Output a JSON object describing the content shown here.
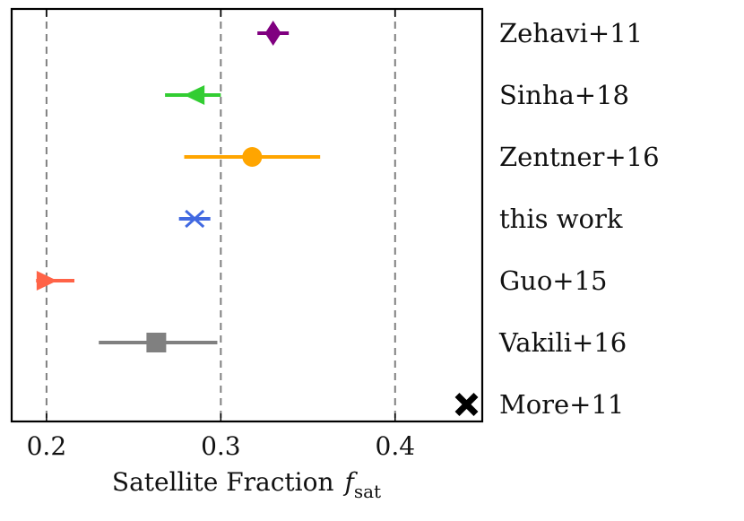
{
  "chart_data": {
    "type": "scatter",
    "title": "",
    "xlabel": "Satellite Fraction",
    "xlabel_symbol": "f",
    "xlabel_subscript": "sat",
    "ylabel": "",
    "xlim": [
      0.18,
      0.45
    ],
    "xticks": [
      0.2,
      0.3,
      0.4
    ],
    "xtick_labels": [
      "0.2",
      "0.3",
      "0.4"
    ],
    "vlines": [
      0.2,
      0.3,
      0.4
    ],
    "grid": false,
    "series": [
      {
        "name": "Zehavi+11",
        "value": 0.33,
        "err_low": 0.009,
        "err_high": 0.009,
        "marker": "diamond",
        "color": "#800080"
      },
      {
        "name": "Sinha+18",
        "value": 0.285,
        "err_low": 0.017,
        "err_high": 0.015,
        "marker": "triangle-left",
        "color": "#32cd32"
      },
      {
        "name": "Zentner+16",
        "value": 0.318,
        "err_low": 0.039,
        "err_high": 0.039,
        "marker": "circle",
        "color": "#ffa500"
      },
      {
        "name": "this work",
        "value": 0.285,
        "err_low": 0.009,
        "err_high": 0.009,
        "marker": "x",
        "color": "#4169e1"
      },
      {
        "name": "Guo+15",
        "value": 0.2,
        "err_low": 0.006,
        "err_high": 0.016,
        "marker": "triangle-right",
        "color": "#ff6347"
      },
      {
        "name": "Vakili+16",
        "value": 0.263,
        "err_low": 0.033,
        "err_high": 0.035,
        "marker": "square",
        "color": "#808080"
      },
      {
        "name": "More+11",
        "value": 0.441,
        "err_low": 0,
        "err_high": 0,
        "marker": "thick-x",
        "color": "#000000"
      }
    ]
  }
}
